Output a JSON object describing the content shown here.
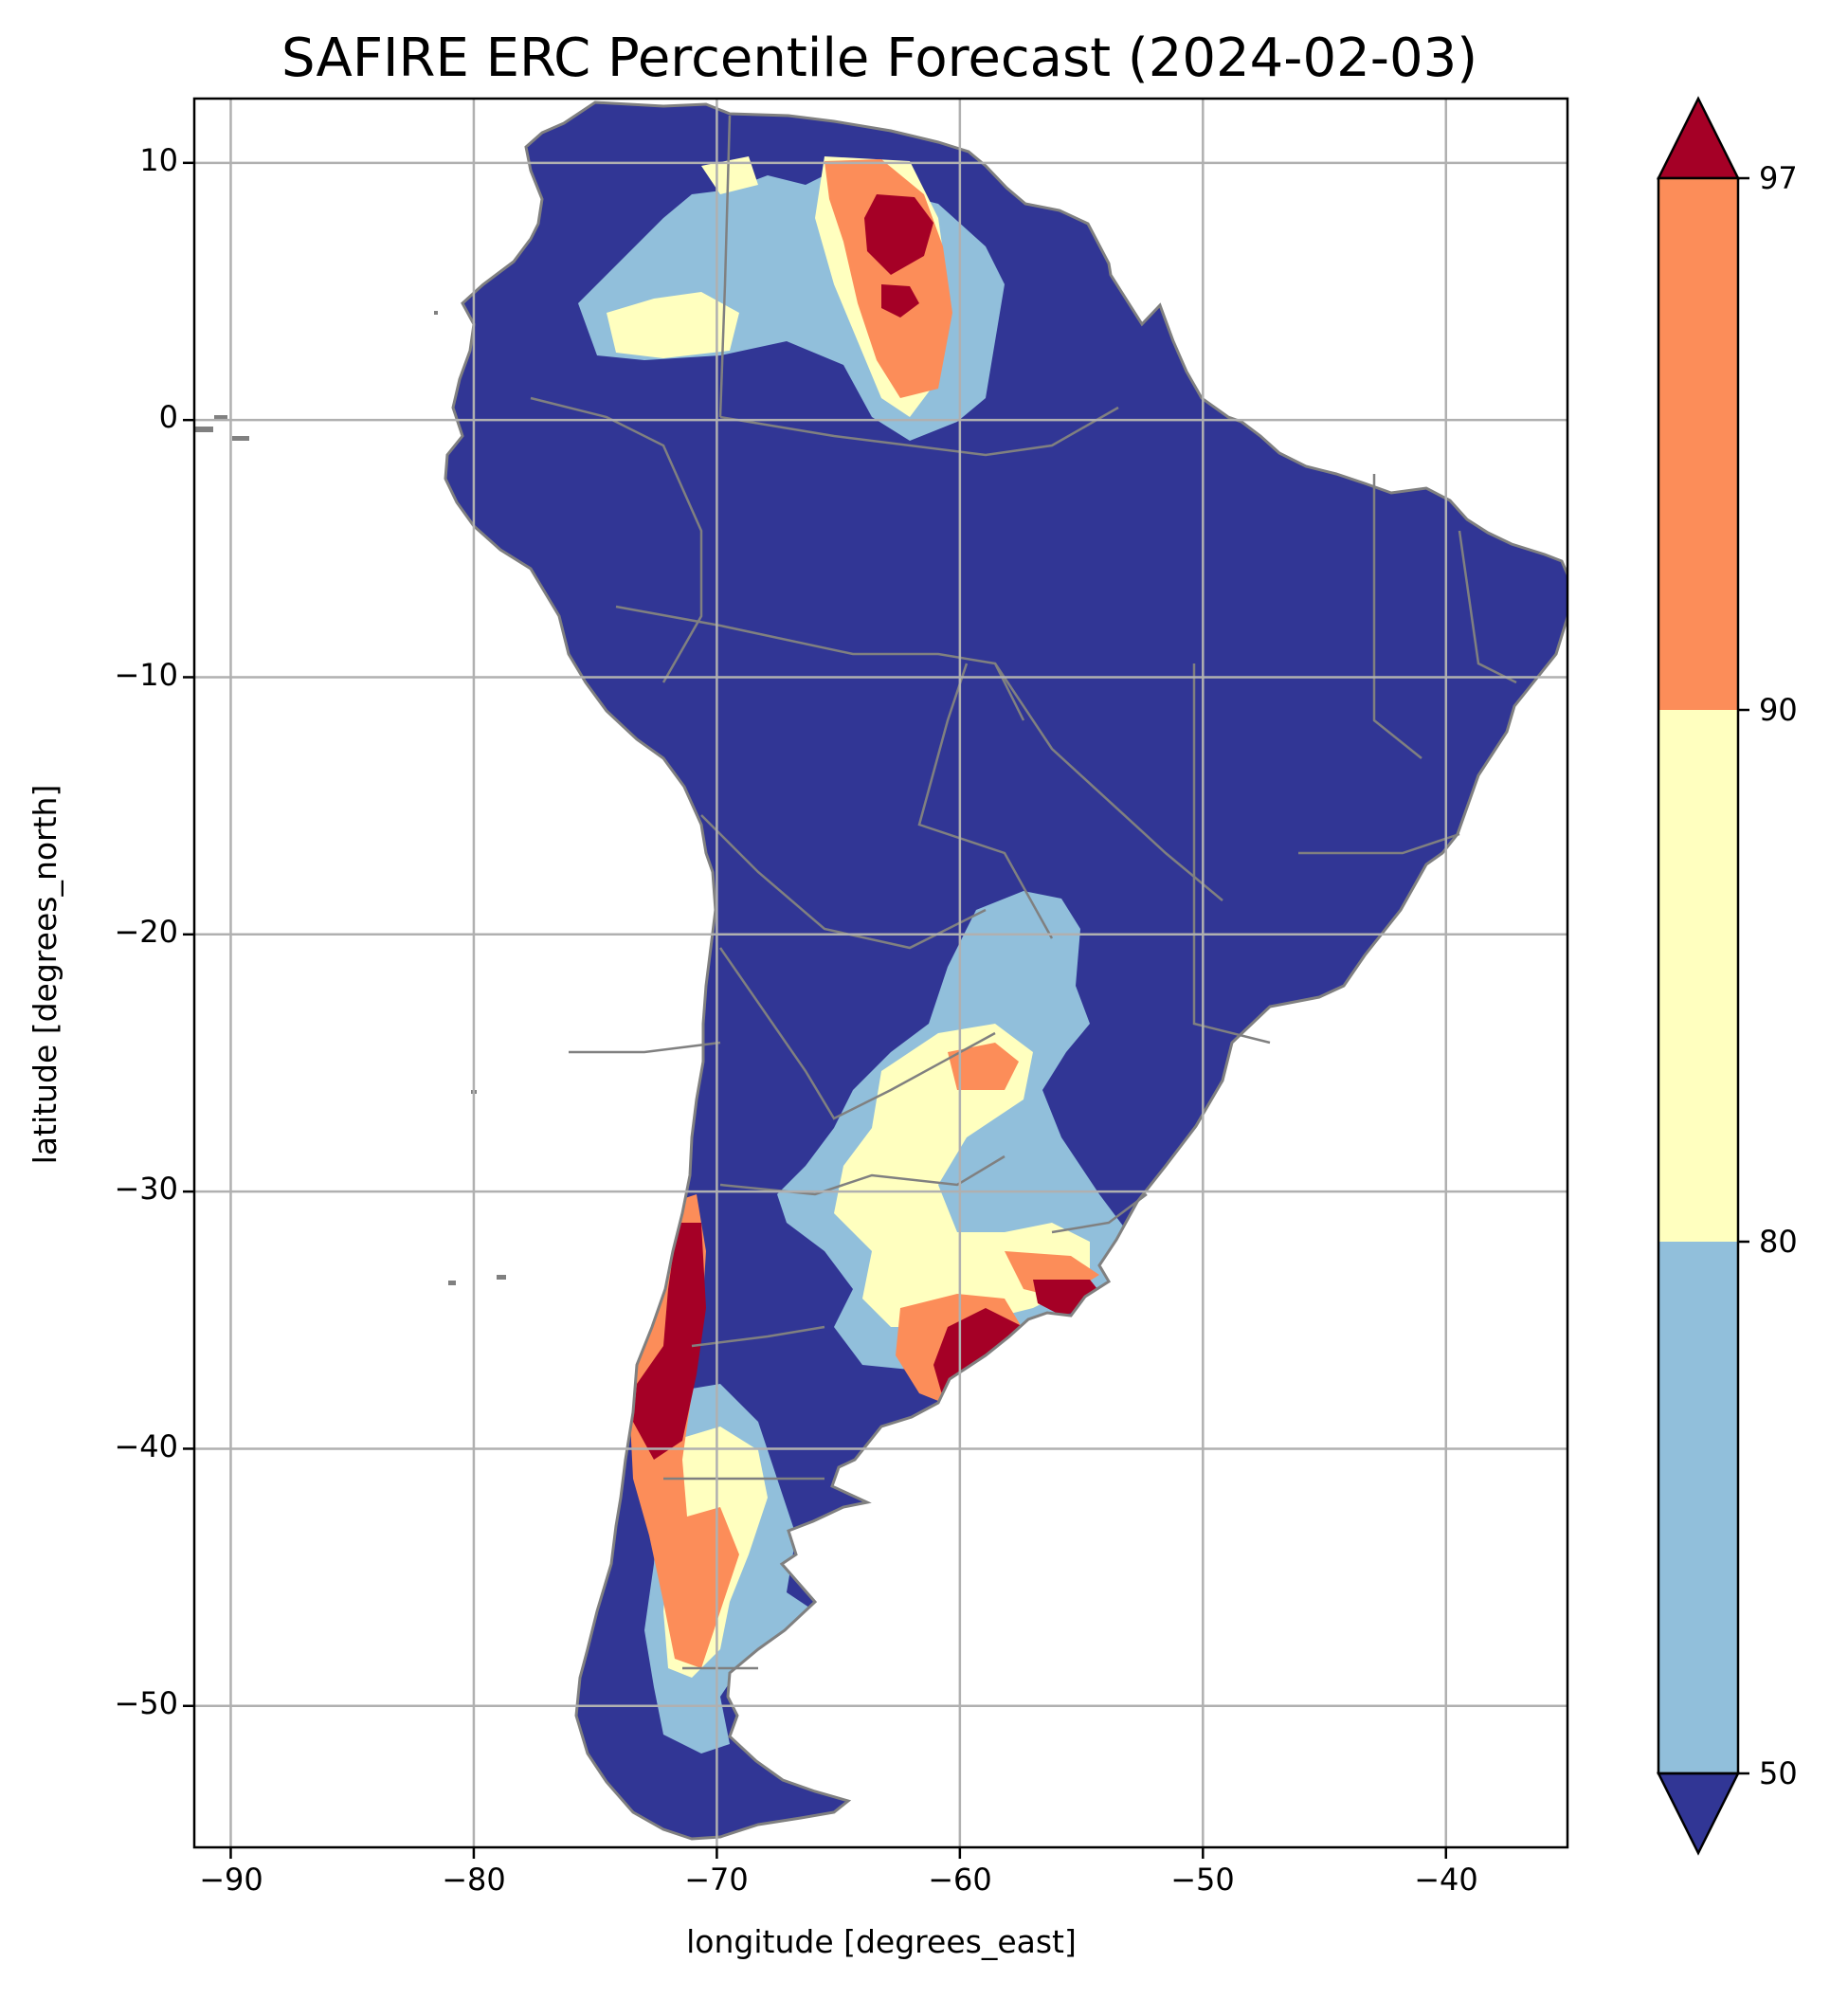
{
  "title": "SAFIRE ERC Percentile Forecast (2024-02-03)",
  "xlabel": "longitude [degrees_east]",
  "ylabel": "latitude [degrees_north]",
  "x_ticks": [
    "−90",
    "−80",
    "−70",
    "−60",
    "−50",
    "−40"
  ],
  "y_ticks": [
    "10",
    "0",
    "−10",
    "−20",
    "−30",
    "−40",
    "−50"
  ],
  "map": {
    "region": "South America",
    "xlim": [
      -91.5,
      -35
    ],
    "ylim": [
      -55.5,
      12.5
    ],
    "grid": true,
    "border_color": "#808080",
    "ocean_color": "#ffffff"
  },
  "colorbar": {
    "ticks": [
      "50",
      "80",
      "90",
      "97"
    ],
    "levels": [
      50,
      80,
      90,
      97
    ],
    "extend": "both",
    "colors": {
      "under": "#313695",
      "50-80": "#91bfdb",
      "80-90": "#ffffbf",
      "90-97": "#fc8d59",
      "over": "#a50026"
    }
  }
}
